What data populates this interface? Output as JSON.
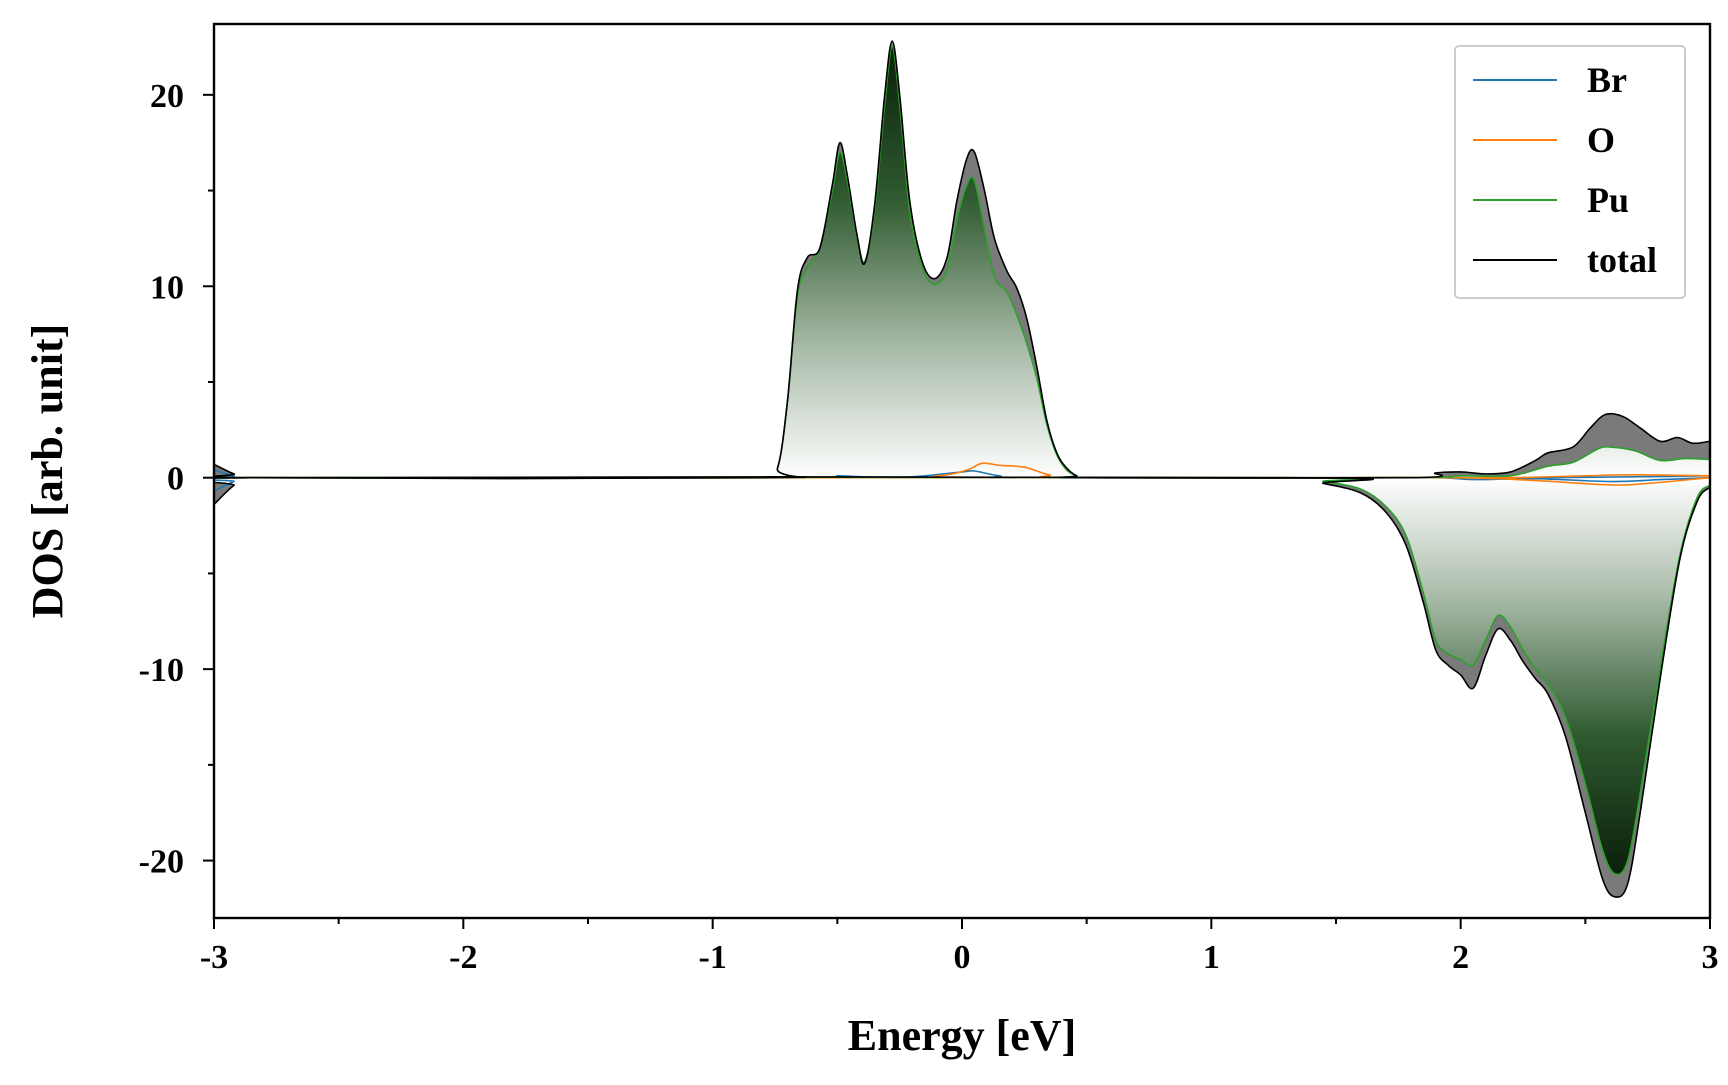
{
  "chart_data": {
    "type": "area",
    "xlabel": "Energy [eV]",
    "ylabel": "DOS [arb. unit]",
    "xlim": [
      -3,
      3
    ],
    "ylim": [
      -23,
      23.7
    ],
    "x_ticks": [
      -3,
      -2,
      -1,
      0,
      1,
      2,
      3
    ],
    "x_tick_labels": [
      "-3",
      "-2",
      "-1",
      "0",
      "1",
      "2",
      "3"
    ],
    "y_ticks": [
      -20,
      -10,
      0,
      10,
      20
    ],
    "y_tick_labels": [
      "-20",
      "-10",
      "0",
      "10",
      "20"
    ],
    "x_minor_step": 0.5,
    "y_minor_step": 5,
    "grid": false,
    "legend_position": "top-right",
    "legend": [
      "Br",
      "O",
      "Pu",
      "total"
    ],
    "fill": {
      "positive_source": "Pu",
      "negative_source": "Pu",
      "total_fill_color": "#7a7a7a",
      "gradient_dark": "#0a1f0a",
      "gradient_light": "#ffffff"
    },
    "series": [
      {
        "name": "Br",
        "color": "#1f77b4",
        "up": [
          [
            -3,
            0.4
          ],
          [
            -2.92,
            0.1
          ],
          [
            -2.85,
            0
          ],
          [
            -0.6,
            0
          ],
          [
            -0.5,
            0.1
          ],
          [
            -0.4,
            0.05
          ],
          [
            -0.2,
            0.05
          ],
          [
            0,
            0.3
          ],
          [
            0.05,
            0.35
          ],
          [
            0.15,
            0.1
          ],
          [
            0.3,
            0
          ],
          [
            1.9,
            0
          ],
          [
            2.0,
            0
          ],
          [
            2.3,
            0
          ],
          [
            2.7,
            0.05
          ],
          [
            3,
            0.1
          ]
        ],
        "down": [
          [
            -3,
            -0.7
          ],
          [
            -2.92,
            -0.2
          ],
          [
            -2.85,
            0
          ],
          [
            1.4,
            0
          ],
          [
            1.9,
            0
          ],
          [
            2.05,
            -0.1
          ],
          [
            2.3,
            -0.05
          ],
          [
            2.6,
            -0.2
          ],
          [
            2.8,
            -0.1
          ],
          [
            3,
            0
          ]
        ]
      },
      {
        "name": "O",
        "color": "#ff7f0e",
        "up": [
          [
            -3,
            0.1
          ],
          [
            -2.85,
            0
          ],
          [
            -0.4,
            0
          ],
          [
            -0.1,
            0.1
          ],
          [
            0.02,
            0.4
          ],
          [
            0.08,
            0.75
          ],
          [
            0.15,
            0.65
          ],
          [
            0.25,
            0.55
          ],
          [
            0.35,
            0.15
          ],
          [
            0.45,
            0
          ],
          [
            1.9,
            0
          ],
          [
            2.2,
            0
          ],
          [
            2.5,
            0.1
          ],
          [
            2.7,
            0.15
          ],
          [
            3,
            0.1
          ]
        ],
        "down": [
          [
            -3,
            -0.1
          ],
          [
            -2.85,
            0
          ],
          [
            1.4,
            0
          ],
          [
            2.0,
            0
          ],
          [
            2.3,
            -0.15
          ],
          [
            2.55,
            -0.35
          ],
          [
            2.7,
            -0.35
          ],
          [
            3,
            0
          ]
        ]
      },
      {
        "name": "Pu",
        "color": "#2ca02c",
        "up": [
          [
            -3,
            0.1
          ],
          [
            -2.85,
            0
          ],
          [
            -0.8,
            0
          ],
          [
            -0.74,
            0.5
          ],
          [
            -0.7,
            4.0
          ],
          [
            -0.66,
            9.5
          ],
          [
            -0.62,
            11.0
          ],
          [
            -0.57,
            12.0
          ],
          [
            -0.52,
            15.0
          ],
          [
            -0.49,
            17.0
          ],
          [
            -0.46,
            15.5
          ],
          [
            -0.42,
            12.5
          ],
          [
            -0.39,
            11.3
          ],
          [
            -0.35,
            14.0
          ],
          [
            -0.31,
            19.5
          ],
          [
            -0.28,
            22.5
          ],
          [
            -0.25,
            19.5
          ],
          [
            -0.21,
            14.0
          ],
          [
            -0.16,
            11.0
          ],
          [
            -0.11,
            10.1
          ],
          [
            -0.06,
            10.9
          ],
          [
            -0.02,
            13.5
          ],
          [
            0.02,
            15.3
          ],
          [
            0.05,
            15.5
          ],
          [
            0.09,
            13.0
          ],
          [
            0.13,
            10.5
          ],
          [
            0.18,
            9.7
          ],
          [
            0.22,
            8.5
          ],
          [
            0.26,
            7.0
          ],
          [
            0.3,
            5.2
          ],
          [
            0.34,
            2.8
          ],
          [
            0.38,
            1.2
          ],
          [
            0.42,
            0.4
          ],
          [
            0.46,
            0.1
          ],
          [
            0.5,
            0
          ],
          [
            1.8,
            0
          ],
          [
            2.0,
            0.1
          ],
          [
            2.2,
            0.1
          ],
          [
            2.35,
            0.6
          ],
          [
            2.45,
            0.8
          ],
          [
            2.55,
            1.5
          ],
          [
            2.6,
            1.6
          ],
          [
            2.7,
            1.4
          ],
          [
            2.8,
            0.9
          ],
          [
            2.9,
            1.0
          ],
          [
            3,
            0.95
          ]
        ],
        "down": [
          [
            -3,
            -0.2
          ],
          [
            -2.85,
            0
          ],
          [
            1.3,
            0
          ],
          [
            1.45,
            -0.2
          ],
          [
            1.6,
            -0.6
          ],
          [
            1.7,
            -1.5
          ],
          [
            1.78,
            -3.0
          ],
          [
            1.85,
            -6.0
          ],
          [
            1.9,
            -8.5
          ],
          [
            1.95,
            -9.2
          ],
          [
            2.0,
            -9.5
          ],
          [
            2.05,
            -9.8
          ],
          [
            2.1,
            -8.5
          ],
          [
            2.15,
            -7.2
          ],
          [
            2.2,
            -7.8
          ],
          [
            2.25,
            -9.0
          ],
          [
            2.3,
            -10.0
          ],
          [
            2.35,
            -10.8
          ],
          [
            2.42,
            -12.5
          ],
          [
            2.5,
            -16.0
          ],
          [
            2.57,
            -19.5
          ],
          [
            2.62,
            -20.7
          ],
          [
            2.67,
            -20.0
          ],
          [
            2.72,
            -16.5
          ],
          [
            2.8,
            -10.0
          ],
          [
            2.88,
            -4.0
          ],
          [
            2.95,
            -1.0
          ],
          [
            3,
            -0.4
          ]
        ]
      },
      {
        "name": "total",
        "color": "#000000",
        "up": [
          [
            -3,
            0.7
          ],
          [
            -2.92,
            0.2
          ],
          [
            -2.85,
            0
          ],
          [
            -0.8,
            0
          ],
          [
            -0.74,
            0.5
          ],
          [
            -0.7,
            4.0
          ],
          [
            -0.66,
            9.8
          ],
          [
            -0.62,
            11.5
          ],
          [
            -0.57,
            12.0
          ],
          [
            -0.52,
            15.3
          ],
          [
            -0.49,
            17.5
          ],
          [
            -0.46,
            15.8
          ],
          [
            -0.42,
            12.6
          ],
          [
            -0.39,
            11.2
          ],
          [
            -0.35,
            14.3
          ],
          [
            -0.31,
            20.0
          ],
          [
            -0.28,
            22.8
          ],
          [
            -0.25,
            20.0
          ],
          [
            -0.21,
            14.5
          ],
          [
            -0.16,
            11.3
          ],
          [
            -0.11,
            10.4
          ],
          [
            -0.06,
            11.5
          ],
          [
            -0.02,
            14.5
          ],
          [
            0.02,
            16.7
          ],
          [
            0.05,
            17.0
          ],
          [
            0.09,
            15.0
          ],
          [
            0.13,
            12.5
          ],
          [
            0.18,
            10.8
          ],
          [
            0.22,
            9.9
          ],
          [
            0.26,
            8.3
          ],
          [
            0.3,
            5.8
          ],
          [
            0.34,
            3.0
          ],
          [
            0.38,
            1.3
          ],
          [
            0.42,
            0.5
          ],
          [
            0.46,
            0.1
          ],
          [
            0.5,
            0
          ],
          [
            1.8,
            0
          ],
          [
            1.9,
            0.25
          ],
          [
            2.0,
            0.3
          ],
          [
            2.1,
            0.2
          ],
          [
            2.2,
            0.3
          ],
          [
            2.3,
            0.9
          ],
          [
            2.35,
            1.3
          ],
          [
            2.45,
            1.6
          ],
          [
            2.52,
            2.6
          ],
          [
            2.58,
            3.3
          ],
          [
            2.65,
            3.2
          ],
          [
            2.72,
            2.6
          ],
          [
            2.8,
            1.9
          ],
          [
            2.87,
            2.1
          ],
          [
            2.93,
            1.8
          ],
          [
            3,
            1.9
          ]
        ],
        "down": [
          [
            -3,
            -1.4
          ],
          [
            -2.92,
            -0.4
          ],
          [
            -2.85,
            0
          ],
          [
            1.3,
            0
          ],
          [
            1.45,
            -0.3
          ],
          [
            1.6,
            -0.8
          ],
          [
            1.7,
            -1.8
          ],
          [
            1.78,
            -3.5
          ],
          [
            1.85,
            -6.5
          ],
          [
            1.9,
            -9.0
          ],
          [
            1.95,
            -9.8
          ],
          [
            2.0,
            -10.3
          ],
          [
            2.05,
            -11.0
          ],
          [
            2.1,
            -9.3
          ],
          [
            2.15,
            -7.9
          ],
          [
            2.2,
            -8.5
          ],
          [
            2.25,
            -9.6
          ],
          [
            2.3,
            -10.5
          ],
          [
            2.35,
            -11.3
          ],
          [
            2.42,
            -13.5
          ],
          [
            2.5,
            -17.5
          ],
          [
            2.57,
            -21.0
          ],
          [
            2.62,
            -21.9
          ],
          [
            2.67,
            -21.2
          ],
          [
            2.72,
            -17.5
          ],
          [
            2.8,
            -10.5
          ],
          [
            2.88,
            -4.2
          ],
          [
            2.95,
            -1.2
          ],
          [
            3,
            -0.5
          ]
        ]
      }
    ]
  }
}
